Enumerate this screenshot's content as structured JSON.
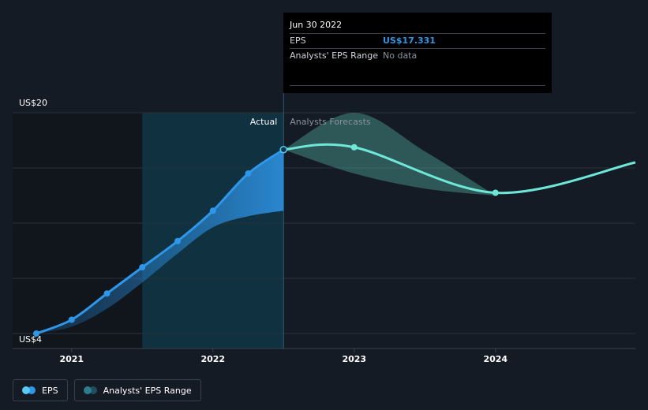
{
  "tooltip": {
    "date": "Jun 30 2022",
    "rows": [
      {
        "label": "EPS",
        "value": "US$17.331"
      },
      {
        "label": "Analysts' EPS Range",
        "value": "No data"
      }
    ]
  },
  "legend": [
    {
      "label": "EPS",
      "color_a": "#5bc8f5",
      "color_b": "#2f96e8"
    },
    {
      "label": "Analysts' EPS Range",
      "color_a": "#2e7d8c",
      "color_b": "#1f4f5e"
    }
  ],
  "colors": {
    "eps_line": "#2f96e8",
    "forecast_line": "#6ee7d8",
    "band_actual": "#2f96e8",
    "band_forecast": "#5ec8b8",
    "highlight": "#0d3a4a"
  },
  "chart_data": {
    "type": "line",
    "region_labels": {
      "actual": "Actual",
      "forecast": "Analysts Forecasts"
    },
    "y_axis": {
      "min": 4,
      "max": 20,
      "tick_labels": [
        {
          "value": 20,
          "label": "US$20"
        },
        {
          "value": 4,
          "label": "US$4"
        }
      ],
      "gridlines": [
        4,
        8,
        12,
        16,
        20
      ]
    },
    "x_axis": {
      "min": 2020.75,
      "max": 2024.99,
      "ticks": [
        {
          "value": 2021,
          "label": "2021"
        },
        {
          "value": 2022,
          "label": "2022"
        },
        {
          "value": 2023,
          "label": "2023"
        },
        {
          "value": 2024,
          "label": "2024"
        }
      ]
    },
    "actual_cutoff": 2022.5,
    "shaded_start": 2021.5,
    "series": [
      {
        "name": "EPS",
        "kind": "actual",
        "points": [
          [
            2020.75,
            4.0
          ],
          [
            2021.0,
            5.0
          ],
          [
            2021.25,
            6.9
          ],
          [
            2021.5,
            8.8
          ],
          [
            2021.75,
            10.7
          ],
          [
            2022.0,
            12.9
          ],
          [
            2022.25,
            15.6
          ],
          [
            2022.5,
            17.331
          ]
        ]
      },
      {
        "name": "EPS",
        "kind": "forecast",
        "points": [
          [
            2022.5,
            17.331
          ],
          [
            2023.0,
            17.5
          ],
          [
            2024.0,
            14.2
          ],
          [
            2024.99,
            16.4
          ]
        ]
      }
    ],
    "range_actual": {
      "upper": [
        [
          2020.75,
          4.0
        ],
        [
          2021.0,
          5.0
        ],
        [
          2021.25,
          6.9
        ],
        [
          2021.5,
          8.8
        ],
        [
          2021.75,
          10.7
        ],
        [
          2022.0,
          12.9
        ],
        [
          2022.25,
          15.6
        ],
        [
          2022.5,
          17.331
        ]
      ],
      "lower": [
        [
          2020.75,
          4.0
        ],
        [
          2021.0,
          4.5
        ],
        [
          2021.25,
          5.8
        ],
        [
          2021.5,
          7.7
        ],
        [
          2021.75,
          9.8
        ],
        [
          2022.0,
          11.7
        ],
        [
          2022.25,
          12.5
        ],
        [
          2022.5,
          12.9
        ]
      ]
    },
    "range_forecast": {
      "upper": [
        [
          2022.5,
          17.331
        ],
        [
          2023.0,
          20.0
        ],
        [
          2023.5,
          17.2
        ],
        [
          2024.0,
          14.0
        ]
      ],
      "lower": [
        [
          2022.5,
          17.331
        ],
        [
          2023.0,
          15.6
        ],
        [
          2023.5,
          14.5
        ],
        [
          2024.0,
          14.0
        ]
      ]
    }
  }
}
